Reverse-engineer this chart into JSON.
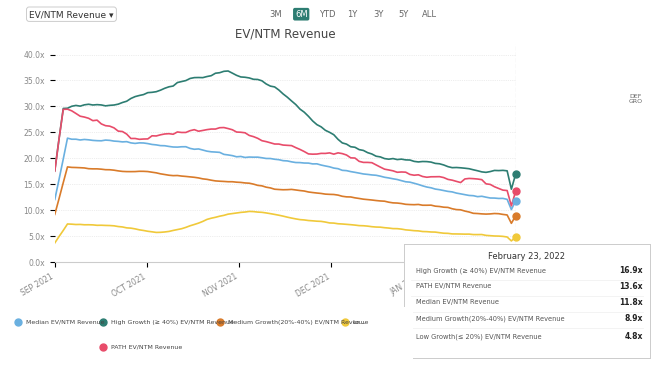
{
  "title": "EV/NTM Revenue",
  "background_color": "#ffffff",
  "plot_bg_color": "#ffffff",
  "x_labels": [
    "SEP 2021",
    "OCT 2021",
    "NOV 2021",
    "DEC 2021",
    "JAN 2022"
  ],
  "y_ticks": [
    0,
    5,
    10,
    15,
    20,
    25,
    30,
    35,
    40
  ],
  "y_tick_labels": [
    "0.0x",
    "5.0x",
    "10.0x",
    "15.0x",
    "20.0x",
    "25.0x",
    "30.0x",
    "35.0x",
    "40.0x"
  ],
  "series": {
    "high_growth": {
      "label": "High Growth (≥ 40%) EV/NTM Revenue",
      "color": "#2d7d72"
    },
    "path": {
      "label": "PATH EV/NTM Revenue",
      "color": "#e84c6a"
    },
    "median": {
      "label": "Median EV/NTM Revenue",
      "color": "#6ab0e0"
    },
    "medium_growth": {
      "label": "Medium Growth(20%-40%) EV/NTM Revenue",
      "color": "#d97b2a"
    },
    "low_growth": {
      "label": "Low Growth(≤ 20%) EV/NTM Revenue",
      "color": "#f0c93a"
    }
  },
  "tooltip": {
    "date": "February 23, 2022",
    "entries": [
      {
        "label": "High Growth (≥ 40%) EV/NTM Revenue",
        "value": "16.9x",
        "color": "#2d7d72"
      },
      {
        "label": "PATH EV/NTM Revenue",
        "value": "13.6x",
        "color": "#e84c6a"
      },
      {
        "label": "Median EV/NTM Revenue",
        "value": "11.8x",
        "color": "#6ab0e0"
      },
      {
        "label": "Medium Growth(20%-40%) EV/NTM Revenue",
        "value": "8.9x",
        "color": "#d97b2a"
      },
      {
        "label": "Low Growth(≤ 20%) EV/NTM Revenue",
        "value": "4.8x",
        "color": "#f0c93a"
      }
    ]
  },
  "tab_label": "6M",
  "dropdown_label": "EV/NTM Revenue ▾",
  "header_tabs": [
    "3M",
    "6M",
    "YTD",
    "1Y",
    "3Y",
    "5Y",
    "ALL"
  ],
  "n_points": 110
}
